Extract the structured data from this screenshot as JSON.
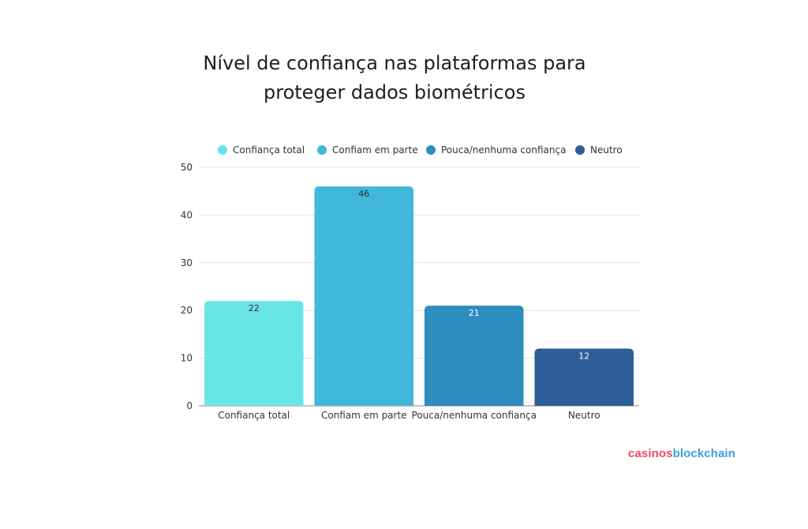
{
  "title_lines": [
    "Nível de confiança nas plataformas para",
    "proteger dados biométricos"
  ],
  "brand": {
    "part1": "casinos",
    "part2": "blockchain",
    "color1": "#ef4765",
    "color2": "#3aa0dc"
  },
  "chart_data": {
    "type": "bar",
    "title": "Nível de confiança nas plataformas para proteger dados biométricos",
    "categories": [
      "Confiança total",
      "Confiam em parte",
      "Pouca/nenhuma confiança",
      "Neutro"
    ],
    "values": [
      22,
      46,
      21,
      12
    ],
    "colors": [
      "#6ae5e7",
      "#42b8d8",
      "#2e8dbf",
      "#2d5e97"
    ],
    "label_colors": [
      "#2a2a2a",
      "#2a2a2a",
      "#ffffff",
      "#ffffff"
    ],
    "legend": [
      "Confiança total",
      "Confiam em parte",
      "Pouca/nenhuma confiança",
      "Neutro"
    ],
    "legend_position": "top",
    "ylim": [
      0,
      50
    ],
    "yticks": [
      0,
      10,
      20,
      30,
      40,
      50
    ],
    "grid": true,
    "xlabel": "",
    "ylabel": ""
  }
}
